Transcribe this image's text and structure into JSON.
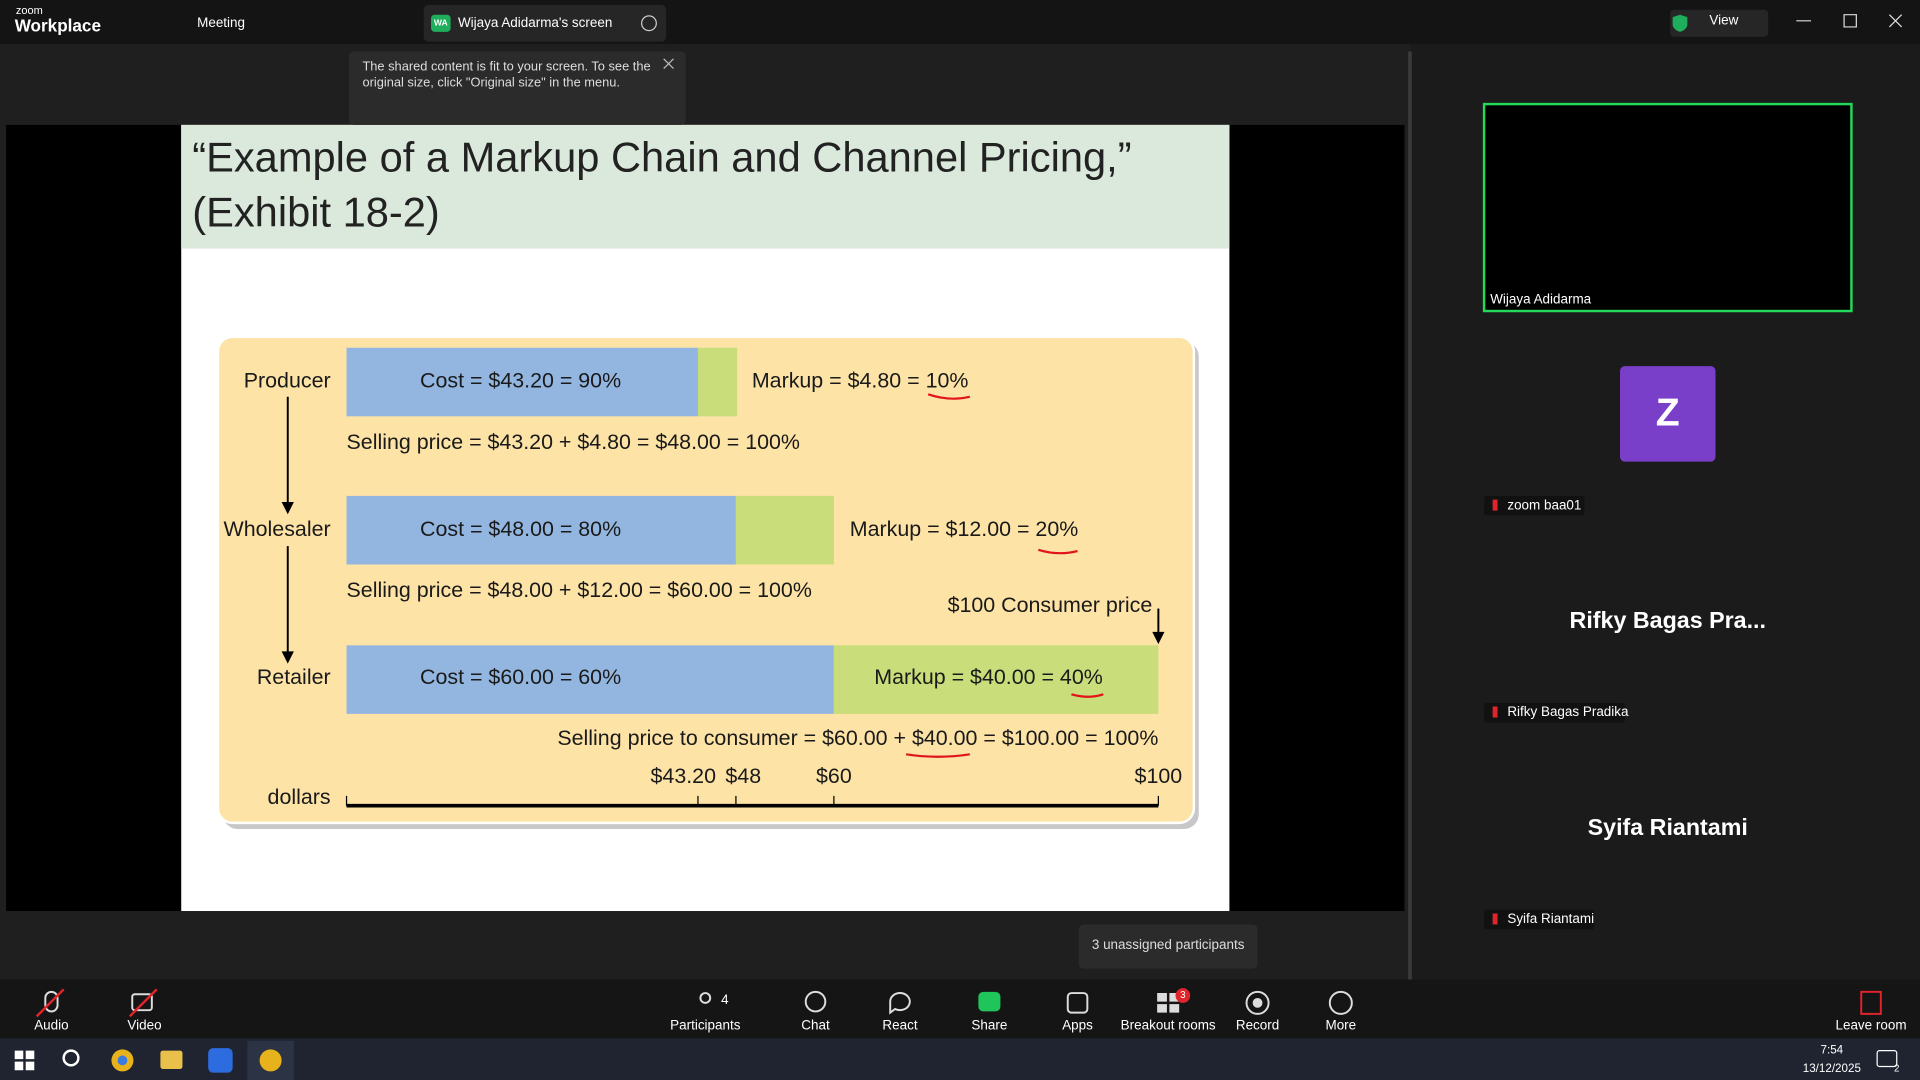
{
  "titlebar": {
    "logo_top": "zoom",
    "logo": "Workplace",
    "meeting": "Meeting",
    "tab_badge": "WA",
    "tab": "Wijaya Adidarma's screen",
    "view": "View"
  },
  "tooltip": {
    "lines": [
      "The shared content is fit to your screen. To see the",
      "original size, click \"Original size\" in the menu."
    ]
  },
  "slide": {
    "title_lines": [
      "“Example of a Markup Chain and Channel Pricing,”",
      "(Exhibit 18-2)"
    ],
    "rows": [
      {
        "label": "Producer",
        "cost": "Cost = $43.20 = 90%",
        "markup": "Markup = $4.80 = 10%",
        "selling": "Selling price = $43.20 + $4.80 = $48.00 = 100%"
      },
      {
        "label": "Wholesaler",
        "cost": "Cost = $48.00 = 80%",
        "markup": "Markup = $12.00 = 20%",
        "selling": "Selling price = $48.00 + $12.00 = $60.00 = 100%"
      },
      {
        "label": "Retailer",
        "cost": "Cost = $60.00 = 60%",
        "markup": "Markup = $40.00 = 40%",
        "selling": "Selling price to consumer = $60.00 + $40.00 = $100.00 = 100%"
      }
    ],
    "consumer_price": "$100 Consumer price",
    "axis_label": "dollars",
    "axis_ticks": [
      "$43.20",
      "$48",
      "$60",
      "$100"
    ]
  },
  "participants": [
    {
      "name": "Wijaya Adidarma"
    },
    {
      "avatar": "Z",
      "name": "zoom baa01"
    },
    {
      "display": "Rifky Bagas Pra...",
      "name": "Rifky Bagas Pradika"
    },
    {
      "display": "Syifa Riantami",
      "name": "Syifa Riantami"
    }
  ],
  "toast": "3 unassigned participants",
  "toolbar": {
    "audio": "Audio",
    "video": "Video",
    "participants": "Participants",
    "participants_count": "4",
    "chat": "Chat",
    "react": "React",
    "share": "Share",
    "apps": "Apps",
    "breakout": "Breakout rooms",
    "breakout_badge": "3",
    "record": "Record",
    "more": "More",
    "leave": "Leave room"
  },
  "taskbar": {
    "time": "7:54",
    "date": "13/12/2025",
    "notifications": "2"
  }
}
